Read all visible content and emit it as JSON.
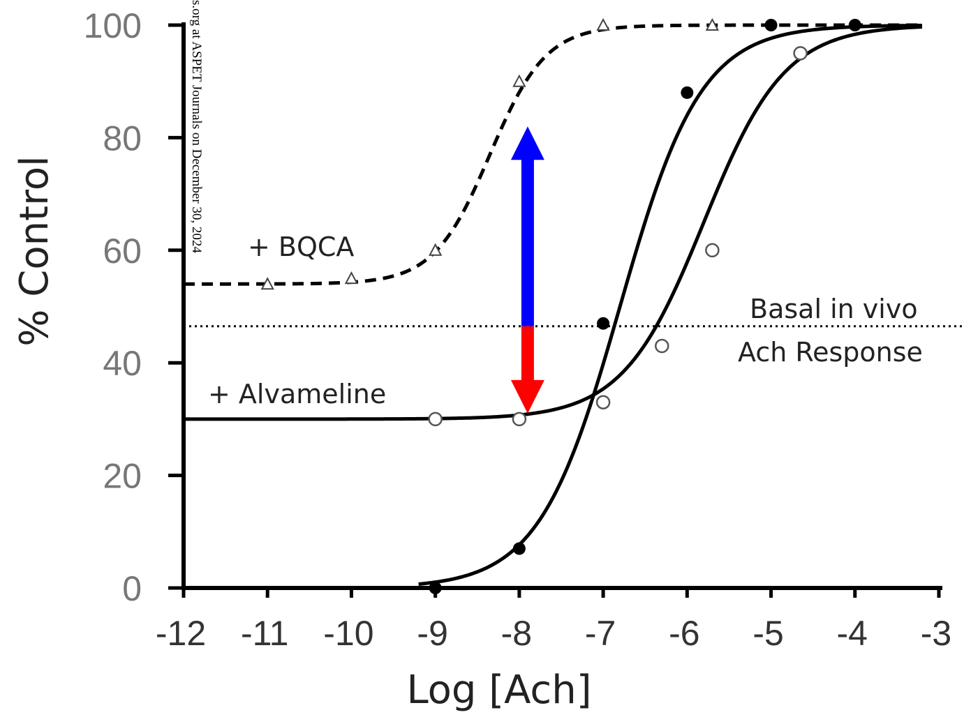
{
  "chart_data": {
    "type": "line",
    "xlabel": "Log [Ach]",
    "ylabel": "% Control",
    "xlim": [
      -12,
      -3
    ],
    "ylim": [
      0,
      100
    ],
    "x_ticks": [
      "-12",
      "-11",
      "-10",
      "-9",
      "-8",
      "-7",
      "-6",
      "-5",
      "-4",
      "-3"
    ],
    "y_ticks": [
      "0",
      "20",
      "40",
      "60",
      "80",
      "100"
    ],
    "grid": false,
    "basal_level": 46.5,
    "annotations": {
      "bqca": "+ BQCA",
      "alvameline": "+ Alvameline",
      "basal_line1": "Basal in vivo",
      "basal_line2": "Ach Response"
    },
    "watermark": "s.org at ASPET Journals on December 30, 2024",
    "arrows": {
      "up": {
        "x": -7.9,
        "from": 46.5,
        "to": 82,
        "color": "#0000ff"
      },
      "down": {
        "x": -7.9,
        "from": 46.5,
        "to": 31,
        "color": "#ff0000"
      }
    },
    "series": [
      {
        "marker": "filled-circle",
        "line": "solid",
        "curve": {
          "bottom": 0,
          "top": 100,
          "logEC50": -6.8,
          "hill": 0.9
        },
        "points": [
          {
            "x": -9,
            "y": 0
          },
          {
            "x": -8,
            "y": 7
          },
          {
            "x": -7,
            "y": 47
          },
          {
            "x": -6,
            "y": 88
          },
          {
            "x": -5,
            "y": 100
          },
          {
            "x": -4,
            "y": 100
          }
        ]
      },
      {
        "name": "+ Alvameline",
        "marker": "open-circle",
        "line": "solid",
        "curve": {
          "bottom": 30,
          "top": 100,
          "logEC50": -5.8,
          "hill": 0.9
        },
        "points": [
          {
            "x": -9,
            "y": 30
          },
          {
            "x": -8,
            "y": 30
          },
          {
            "x": -7,
            "y": 33
          },
          {
            "x": -6.3,
            "y": 43
          },
          {
            "x": -5.7,
            "y": 60
          },
          {
            "x": -4.65,
            "y": 95
          }
        ]
      },
      {
        "name": "+ BQCA",
        "marker": "open-triangle",
        "line": "dashed",
        "curve": {
          "bottom": 54,
          "top": 100,
          "logEC50": -8.35,
          "hill": 1.3
        },
        "points": [
          {
            "x": -11,
            "y": 54
          },
          {
            "x": -10,
            "y": 55
          },
          {
            "x": -9,
            "y": 60
          },
          {
            "x": -8,
            "y": 90
          },
          {
            "x": -7,
            "y": 100
          },
          {
            "x": -5.7,
            "y": 100
          }
        ]
      }
    ]
  }
}
